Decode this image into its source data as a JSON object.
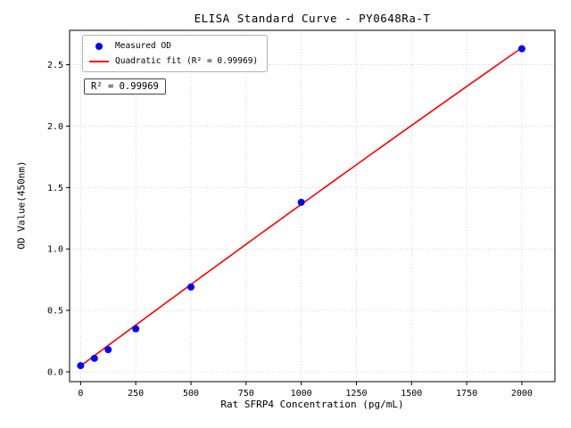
{
  "chart_data": {
    "type": "scatter",
    "title": "ELISA Standard Curve - PY0648Ra-T",
    "xlabel": "Rat SFRP4 Concentration (pg/mL)",
    "ylabel": "OD Value(450nm)",
    "xlim": [
      -50,
      2150
    ],
    "ylim": [
      -0.08,
      2.78
    ],
    "xticks": [
      0,
      250,
      500,
      750,
      1000,
      1250,
      1500,
      1750,
      2000
    ],
    "yticks": [
      0,
      0.5,
      1,
      1.5,
      2,
      2.5
    ],
    "grid": true,
    "legend_position": "upper-left",
    "annotation": "R² = 0.99969",
    "series": [
      {
        "name": "Measured OD",
        "type": "scatter",
        "color": "#0000ff",
        "x": [
          0,
          62.5,
          125,
          250,
          500,
          1000,
          2000
        ],
        "y": [
          0.05,
          0.11,
          0.18,
          0.35,
          0.69,
          1.38,
          2.63
        ]
      },
      {
        "name": "Quadratic fit (R² = 0.99969)",
        "type": "line",
        "color": "#ff0000",
        "fit": {
          "a": -2e-08,
          "b": 0.001335,
          "c": 0.048,
          "x_range": [
            0,
            2000
          ]
        }
      }
    ]
  }
}
